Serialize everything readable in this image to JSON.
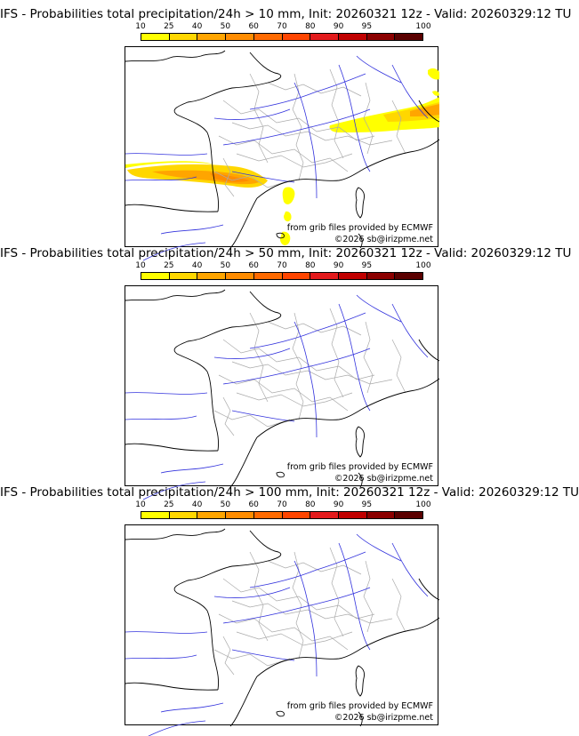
{
  "panels": [
    {
      "title": "IFS - Probabilities total precipitation/24h > 10 mm, Init: 20260321 12z - Valid: 20260329:12 TU",
      "has_precip": true
    },
    {
      "title": "IFS - Probabilities total precipitation/24h > 50 mm, Init: 20260321 12z - Valid: 20260329:12 TU",
      "has_precip": false
    },
    {
      "title": "IFS - Probabilities total precipitation/24h > 100 mm, Init: 20260321 12z - Valid: 20260329:12 TU",
      "has_precip": false
    }
  ],
  "colorbar": {
    "labels": [
      "10",
      "25",
      "40",
      "50",
      "60",
      "70",
      "80",
      "90",
      "95",
      "100"
    ],
    "colors": [
      "#ffff00",
      "#ffd700",
      "#ffa500",
      "#ff8c00",
      "#ff6a00",
      "#ff4500",
      "#e31a1c",
      "#c00000",
      "#8b0000",
      "#5a0000"
    ]
  },
  "credits": {
    "source": "from grib files provided by ECMWF",
    "copyright": "©2026 sb@irizpme.net"
  },
  "colors": {
    "coast": "#000000",
    "rivers": "#3333dd",
    "admin_borders": "#aaaaaa"
  }
}
